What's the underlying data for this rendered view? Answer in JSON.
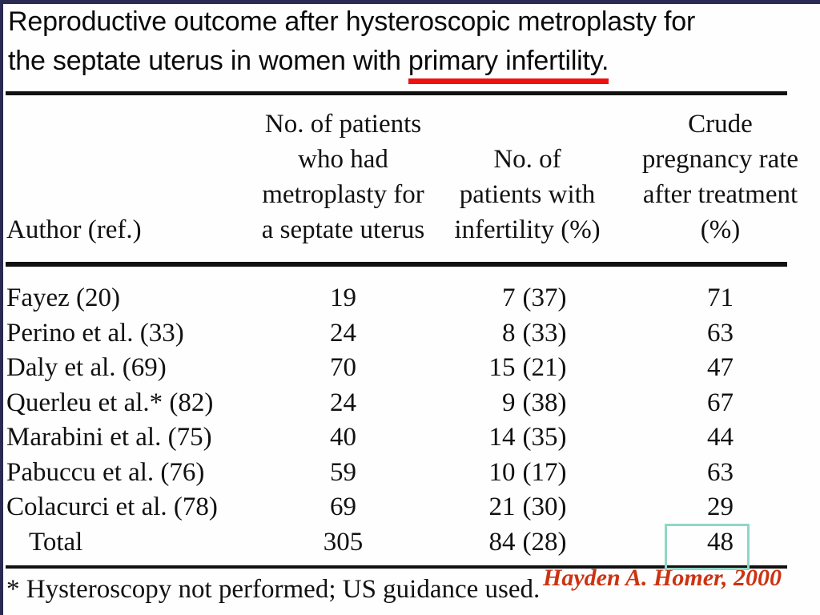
{
  "colors": {
    "underline": "#ee1111",
    "frame": "#2a2a52",
    "highlight": "#8fd7c7",
    "credit": "#cc3311",
    "rule": "#111111"
  },
  "title": {
    "line1": "Reproductive outcome after hysteroscopic metroplasty for",
    "line2_prefix": "the septate uterus in women with ",
    "line2_underlined": "primary infertility."
  },
  "table": {
    "headers": {
      "author": "Author (ref.)",
      "metroplasty": "No. of patients\nwho had\nmetroplasty for\na septate uterus",
      "infertility": "No. of\npatients with\ninfertility (%)",
      "pregnancy": "Crude\npregnancy rate\nafter treatment\n(%)"
    },
    "rows": [
      {
        "author": "Fayez (20)",
        "metroplasty": "19",
        "inf_n": "7",
        "inf_pct": "(37)",
        "rate": "71"
      },
      {
        "author": "Perino et al. (33)",
        "metroplasty": "24",
        "inf_n": "8",
        "inf_pct": "(33)",
        "rate": "63"
      },
      {
        "author": "Daly et al. (69)",
        "metroplasty": "70",
        "inf_n": "15",
        "inf_pct": "(21)",
        "rate": "47"
      },
      {
        "author": "Querleu et al.* (82)",
        "metroplasty": "24",
        "inf_n": "9",
        "inf_pct": "(38)",
        "rate": "67"
      },
      {
        "author": "Marabini et al. (75)",
        "metroplasty": "40",
        "inf_n": "14",
        "inf_pct": "(35)",
        "rate": "44"
      },
      {
        "author": "Pabuccu et al. (76)",
        "metroplasty": "59",
        "inf_n": "10",
        "inf_pct": "(17)",
        "rate": "63"
      },
      {
        "author": "Colacurci et al. (78)",
        "metroplasty": "69",
        "inf_n": "21",
        "inf_pct": "(30)",
        "rate": "29"
      },
      {
        "author": "Total",
        "metroplasty": "305",
        "inf_n": "84",
        "inf_pct": "(28)",
        "rate": "48"
      }
    ],
    "footnote": "* Hysteroscopy not performed; US guidance used."
  },
  "credit": "Hayden A. Homer, 2000"
}
